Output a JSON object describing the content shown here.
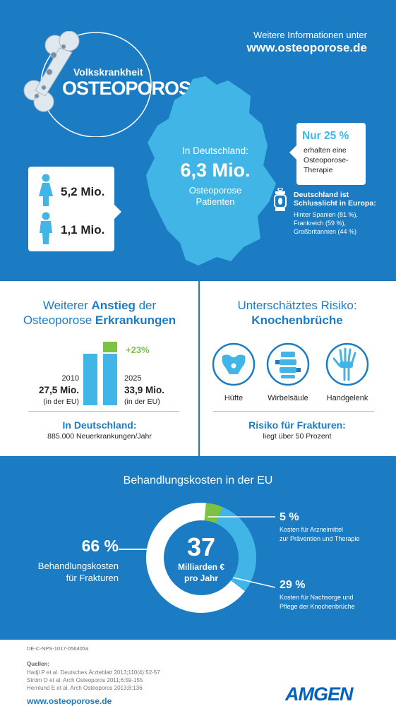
{
  "hero": {
    "logo_line1": "Volkskrankheit",
    "logo_line2": "OSTEOPOROSE",
    "info_line": "Weitere Informationen unter",
    "info_url": "www.osteoporose.de",
    "map_intro": "In Deutschland:",
    "map_value": "6,3 Mio.",
    "map_line1": "Osteoporose",
    "map_line2": "Patienten",
    "women_value": "5,2 Mio.",
    "men_value": "1,1 Mio.",
    "therapy_pct": "Nur 25 %",
    "therapy_line1": "erhalten eine",
    "therapy_line2": "Osteoporose-",
    "therapy_line3": "Therapie",
    "europe_title1": "Deutschland ist",
    "europe_title2": "Schlusslicht in Europa:",
    "europe_items": [
      "Hinter Spanien (81 %),",
      "Frankreich (59 %),",
      "Großbritannien (44 %)"
    ],
    "accent_color": "#1c7cc3",
    "light_color": "#41b6e6",
    "green_color": "#7dc242"
  },
  "rise": {
    "title_line1_a": "Weiterer ",
    "title_line1_b": "Anstieg",
    "title_line1_c": " der",
    "title_line2_a": "Osteoporose ",
    "title_line2_b": "Erkrankungen",
    "growth_label": "+23%",
    "year_2010": "2010",
    "value_2010": "27,5 Mio.",
    "region_2010": "(in der EU)",
    "year_2025": "2025",
    "value_2025": "33,9 Mio.",
    "region_2025": "(in der EU)",
    "germany_title": "In Deutschland:",
    "germany_text": "885.000 Neuerkrankungen/Jahr",
    "bar_2010": 27.5,
    "bar_2025": 33.9
  },
  "fractures": {
    "title_line1": "Unterschätztes Risiko:",
    "title_line2": "Knochenbrüche",
    "items": [
      {
        "label": "Hüfte",
        "icon": "hip-icon"
      },
      {
        "label": "Wirbelsäule",
        "icon": "spine-icon"
      },
      {
        "label": "Handgelenk",
        "icon": "hand-icon"
      }
    ],
    "risk_title": "Risiko für Frakturen:",
    "risk_text": "liegt über 50 Prozent"
  },
  "costs": {
    "title": "Behandlungskosten in der EU",
    "center_value": "37",
    "center_line1": "Milliarden €",
    "center_line2": "pro Jahr",
    "left_pct": "66 %",
    "left_line1": "Behandlungskosten",
    "left_line2": "für Frakturen",
    "right1_pct": "5 %",
    "right1_line1": "Kosten für Arzneimittel",
    "right1_line2": "zur Prävention und Therapie",
    "right2_pct": "29 %",
    "right2_line1": "Kosten für Nachsorge und",
    "right2_line2": "Pflege der Knochenbrüche",
    "shares": [
      66,
      5,
      29
    ]
  },
  "footer": {
    "code": "DE-C-NPS-1017-056405a",
    "sources_title": "Quellen:",
    "sources": [
      "Hadji P et al. Deutsches Ärzteblatt 2013;110(4):52-57",
      "Ström O et al. Arch Osteoporos 2011;6:59-155",
      "Hernlund E et al. Arch Osteoporos 2013;8:136"
    ],
    "url": "www.osteoporose.de",
    "brand": "AMGEN"
  }
}
